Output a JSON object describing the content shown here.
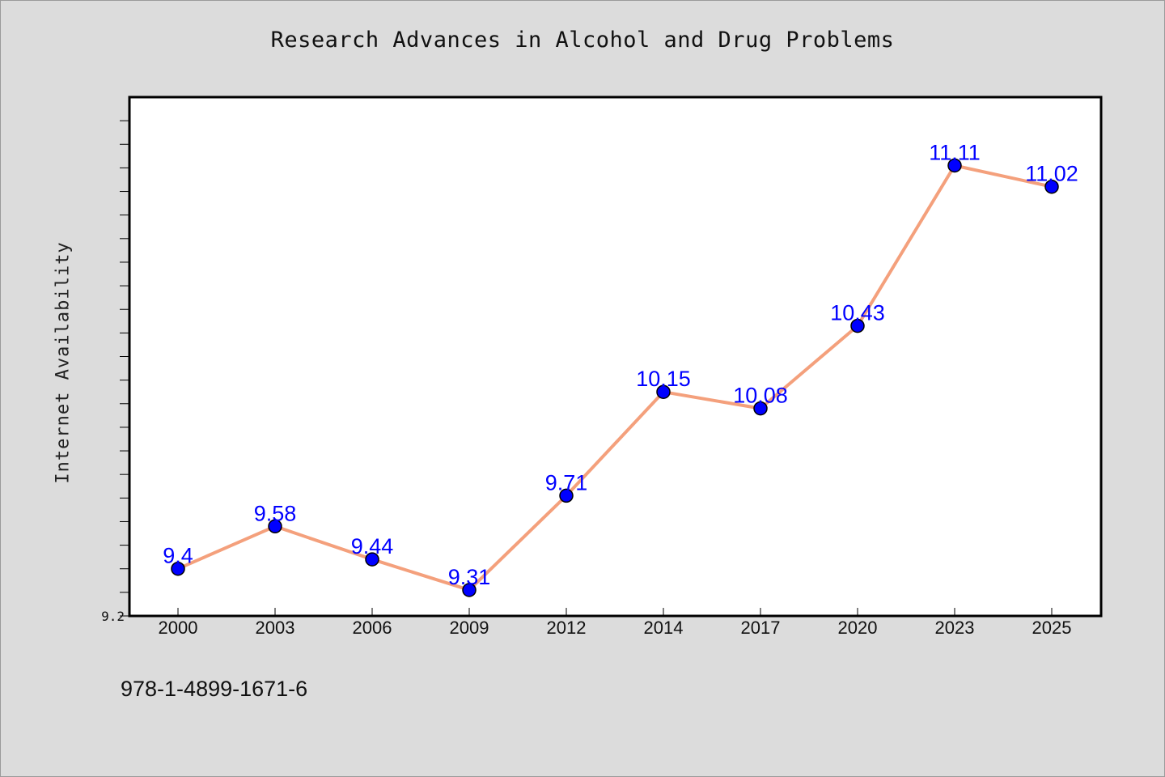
{
  "title": "Research Advances in Alcohol and Drug Problems",
  "footer_text": "978-1-4899-1671-6",
  "colors": {
    "background": "#dcdcdc",
    "plot_bg": "#ffffff",
    "line": "#f4a07c",
    "marker": "#0000ff",
    "label": "#0000ff"
  },
  "chart_data": {
    "type": "line",
    "title": "Research Advances in Alcohol and Drug Problems",
    "xlabel": "",
    "ylabel": "Internet Availability",
    "categories": [
      "2000",
      "2003",
      "2006",
      "2009",
      "2012",
      "2014",
      "2017",
      "2020",
      "2023",
      "2025"
    ],
    "series": [
      {
        "values": [
          9.4,
          9.58,
          9.44,
          9.31,
          9.71,
          10.15,
          10.08,
          10.43,
          11.11,
          11.02
        ]
      }
    ],
    "value_labels": [
      "9.4",
      "9.58",
      "9.44",
      "9.31",
      "9.71",
      "10.15",
      "10.08",
      "10.43",
      "11.11",
      "11.02"
    ],
    "y_tick_labels": [
      "9.2"
    ],
    "ylim": [
      9.2,
      11.4
    ],
    "grid": false,
    "legend": "none"
  }
}
